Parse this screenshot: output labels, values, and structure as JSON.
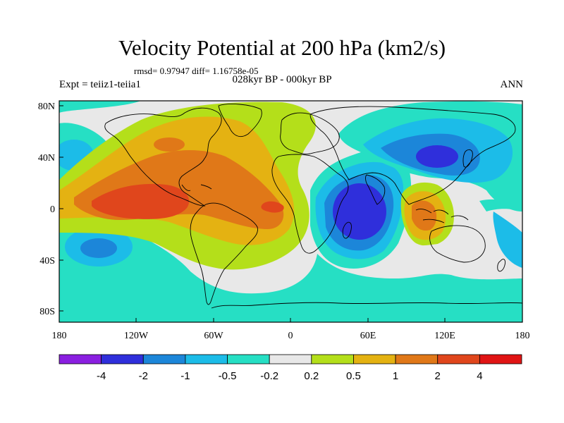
{
  "title": "Velocity Potential at 200 hPa (km2/s)",
  "stats": "rmsd= 0.97947 diff= 1.16758e-05",
  "experiment": "Expt = teiiz1-teiia1",
  "period": "028kyr BP - 000kyr BP",
  "season": "ANN",
  "lat_ticks": [
    "80N",
    "40N",
    "0",
    "40S",
    "80S"
  ],
  "lon_ticks": [
    "180",
    "120W",
    "60W",
    "0",
    "60E",
    "120E",
    "180"
  ],
  "colorbar": {
    "colors": [
      "#8a1fe0",
      "#2f2fdb",
      "#1c86d9",
      "#1cbce8",
      "#26dfc4",
      "#e8e8e8",
      "#b4df1a",
      "#e4b212",
      "#e07818",
      "#e0461c",
      "#e01414"
    ],
    "labels": [
      "-4",
      "-2",
      "-1",
      "-0.5",
      "-0.2",
      "0.2",
      "0.5",
      "1",
      "2",
      "4"
    ]
  }
}
